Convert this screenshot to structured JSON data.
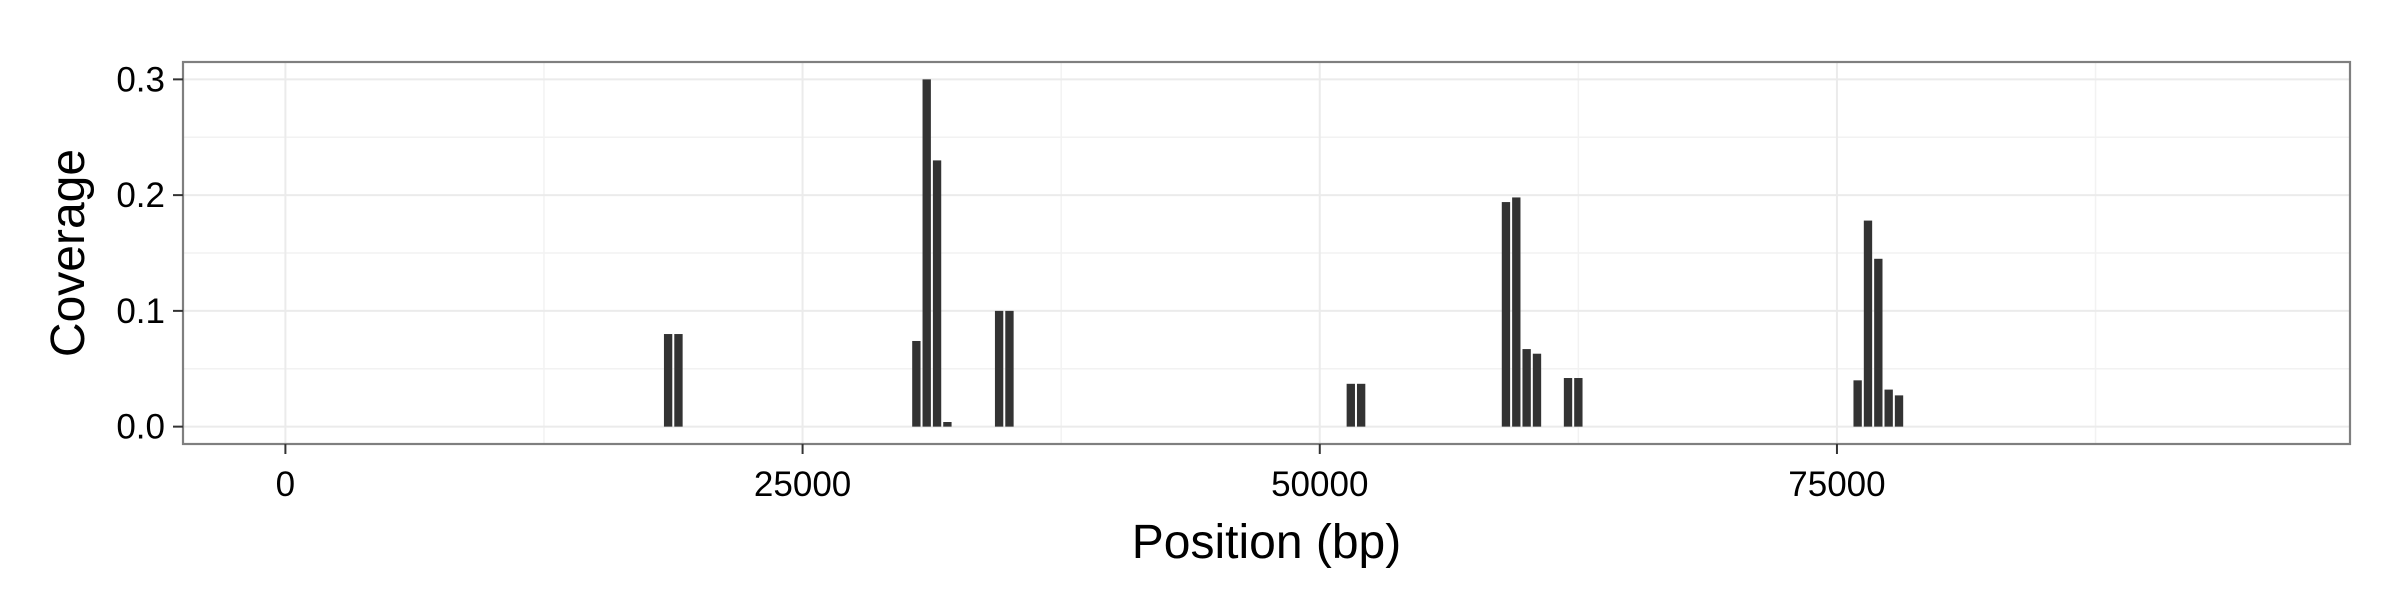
{
  "chart_data": {
    "type": "bar",
    "title": "",
    "xlabel": "Position (bp)",
    "ylabel": "Coverage",
    "xlim": [
      -4950,
      99800
    ],
    "ylim": [
      -0.015,
      0.315
    ],
    "x_ticks": [
      0,
      25000,
      50000,
      75000
    ],
    "x_tick_labels": [
      "0",
      "25000",
      "50000",
      "75000"
    ],
    "y_ticks": [
      0.0,
      0.1,
      0.2,
      0.3
    ],
    "y_tick_labels": [
      "0.0",
      "0.1",
      "0.2",
      "0.3"
    ],
    "bin_width": 500,
    "x": [
      18500,
      19000,
      30500,
      31000,
      31500,
      32000,
      34500,
      35000,
      51500,
      52000,
      59000,
      59500,
      60000,
      60500,
      62000,
      62500,
      76000,
      76500,
      77000,
      77500,
      78000
    ],
    "values": [
      0.08,
      0.08,
      0.074,
      0.3,
      0.23,
      0.004,
      0.1,
      0.1,
      0.037,
      0.037,
      0.194,
      0.198,
      0.067,
      0.063,
      0.042,
      0.042,
      0.04,
      0.178,
      0.145,
      0.032,
      0.027
    ],
    "grid": true,
    "bar_color": "#333333",
    "grid_color": "#ebebeb",
    "panel_border_color": "#7f7f7f"
  }
}
